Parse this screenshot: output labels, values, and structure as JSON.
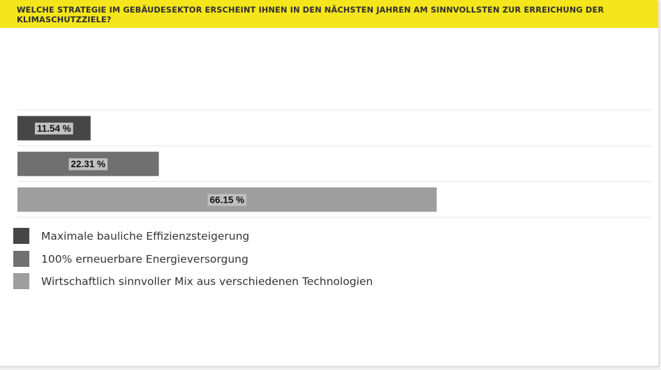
{
  "question": "WELCHE STRATEGIE IM GEBÄUDESEKTOR ERSCHEINT IHNEN IN DEN NÄCHSTEN JAHREN AM SINNVOLLSTEN ZUR ERREICHUNG DER KLIMASCHUTZZIELE?",
  "colors": {
    "header_bg": "#f5e61c",
    "series": [
      "#464646",
      "#707070",
      "#9e9e9e"
    ],
    "label_box": "#c0c0c0"
  },
  "chart_data": {
    "type": "bar",
    "orientation": "horizontal",
    "categories": [
      "Maximale bauliche Effizienzsteigerung",
      "100% erneuerbare Energieversorgung",
      "Wirtschaftlich sinnvoller Mix aus verschiedenen Technologien"
    ],
    "values": [
      11.54,
      22.31,
      66.15
    ],
    "value_labels": [
      "11.54 %",
      "22.31 %",
      "66.15 %"
    ],
    "xlim": [
      0,
      100
    ],
    "grid": true,
    "legend_position": "bottom-left"
  }
}
